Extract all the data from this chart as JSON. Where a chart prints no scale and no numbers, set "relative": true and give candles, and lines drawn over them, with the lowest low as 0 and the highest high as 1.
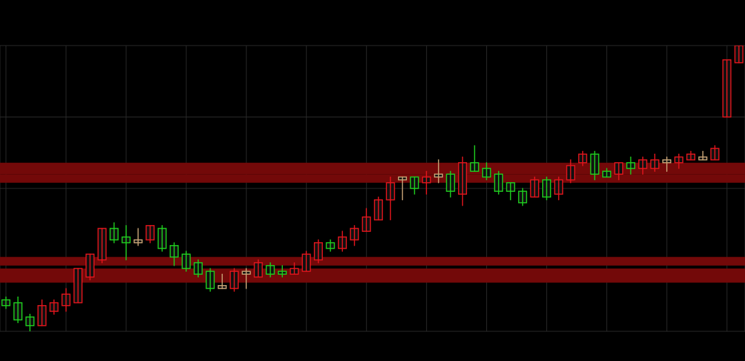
{
  "chart_data": {
    "type": "candlestick",
    "relative": true,
    "grid": true,
    "categories": [
      null,
      null,
      null,
      null,
      null,
      null,
      null,
      null,
      null,
      null,
      null,
      null,
      null,
      null,
      null,
      null,
      null,
      null,
      null,
      null,
      null,
      null,
      null,
      null,
      null,
      null,
      null,
      null,
      null,
      null,
      null,
      null,
      null,
      null,
      null,
      null,
      null,
      null,
      null,
      null,
      null,
      null,
      null,
      null,
      null,
      null,
      null,
      null,
      null,
      null,
      null,
      null,
      null,
      null,
      null,
      null,
      null,
      null,
      null,
      null,
      null,
      null
    ],
    "ohlc": [
      [
        0.11,
        0.12,
        0.08,
        0.09
      ],
      [
        0.1,
        0.12,
        0.03,
        0.04
      ],
      [
        0.05,
        0.06,
        0,
        0.02
      ],
      [
        0.02,
        0.11,
        0.02,
        0.09
      ],
      [
        0.07,
        0.11,
        0.06,
        0.1
      ],
      [
        0.09,
        0.15,
        0.07,
        0.13
      ],
      [
        0.1,
        0.22,
        0.1,
        0.22
      ],
      [
        0.19,
        0.27,
        0.18,
        0.27
      ],
      [
        0.25,
        0.36,
        0.24,
        0.36
      ],
      [
        0.36,
        0.38,
        0.31,
        0.32
      ],
      [
        0.33,
        0.37,
        0.25,
        0.31
      ],
      [
        0.31,
        0.36,
        0.3,
        0.32
      ],
      [
        0.32,
        0.37,
        0.31,
        0.37
      ],
      [
        0.36,
        0.37,
        0.28,
        0.29
      ],
      [
        0.3,
        0.31,
        0.23,
        0.26
      ],
      [
        0.27,
        0.28,
        0.21,
        0.22
      ],
      [
        0.24,
        0.25,
        0.19,
        0.2
      ],
      [
        0.21,
        0.22,
        0.14,
        0.15
      ],
      [
        0.16,
        0.2,
        0.15,
        0.15
      ],
      [
        0.15,
        0.22,
        0.14,
        0.21
      ],
      [
        0.2,
        0.22,
        0.15,
        0.21
      ],
      [
        0.19,
        0.25,
        0.19,
        0.24
      ],
      [
        0.23,
        0.24,
        0.19,
        0.2
      ],
      [
        0.21,
        0.23,
        0.19,
        0.2
      ],
      [
        0.2,
        0.24,
        0.2,
        0.22
      ],
      [
        0.21,
        0.28,
        0.21,
        0.27
      ],
      [
        0.25,
        0.32,
        0.24,
        0.31
      ],
      [
        0.31,
        0.32,
        0.28,
        0.29
      ],
      [
        0.29,
        0.35,
        0.28,
        0.33
      ],
      [
        0.32,
        0.37,
        0.3,
        0.36
      ],
      [
        0.35,
        0.43,
        0.35,
        0.4
      ],
      [
        0.39,
        0.47,
        0.39,
        0.46
      ],
      [
        0.46,
        0.54,
        0.39,
        0.52
      ],
      [
        0.53,
        0.54,
        0.46,
        0.54
      ],
      [
        0.54,
        0.54,
        0.48,
        0.5
      ],
      [
        0.52,
        0.56,
        0.48,
        0.54
      ],
      [
        0.54,
        0.6,
        0.52,
        0.55
      ],
      [
        0.55,
        0.56,
        0.47,
        0.49
      ],
      [
        0.48,
        0.61,
        0.44,
        0.59
      ],
      [
        0.59,
        0.65,
        0.56,
        0.56
      ],
      [
        0.57,
        0.59,
        0.53,
        0.54
      ],
      [
        0.55,
        0.56,
        0.48,
        0.49
      ],
      [
        0.52,
        0.52,
        0.46,
        0.49
      ],
      [
        0.49,
        0.5,
        0.44,
        0.45
      ],
      [
        0.47,
        0.54,
        0.47,
        0.53
      ],
      [
        0.53,
        0.54,
        0.46,
        0.47
      ],
      [
        0.48,
        0.54,
        0.46,
        0.53
      ],
      [
        0.53,
        0.6,
        0.52,
        0.58
      ],
      [
        0.59,
        0.63,
        0.58,
        0.62
      ],
      [
        0.62,
        0.63,
        0.53,
        0.55
      ],
      [
        0.56,
        0.57,
        0.54,
        0.54
      ],
      [
        0.55,
        0.59,
        0.53,
        0.59
      ],
      [
        0.59,
        0.61,
        0.55,
        0.57
      ],
      [
        0.57,
        0.61,
        0.55,
        0.6
      ],
      [
        0.57,
        0.62,
        0.56,
        0.6
      ],
      [
        0.59,
        0.61,
        0.56,
        0.6
      ],
      [
        0.59,
        0.62,
        0.57,
        0.61
      ],
      [
        0.6,
        0.63,
        0.6,
        0.62
      ],
      [
        0.6,
        0.63,
        0.6,
        0.61
      ],
      [
        0.6,
        0.65,
        0.6,
        0.64
      ],
      [
        0.75,
        0.95,
        0.75,
        0.95
      ],
      [
        0.94,
        1,
        0.94,
        1
      ]
    ],
    "colors": [
      "#1fcf1f",
      "#1fcf1f",
      "#1fcf1f",
      "#e3161d",
      "#e3161d",
      "#e3161d",
      "#e3161d",
      "#e3161d",
      "#e3161d",
      "#1fcf1f",
      "#1fcf1f",
      "#c9a577",
      "#e3161d",
      "#1fcf1f",
      "#1fcf1f",
      "#1fcf1f",
      "#1fcf1f",
      "#1fcf1f",
      "#c9a577",
      "#e3161d",
      "#c9a577",
      "#e3161d",
      "#1fcf1f",
      "#1fcf1f",
      "#e3161d",
      "#e3161d",
      "#e3161d",
      "#1fcf1f",
      "#e3161d",
      "#e3161d",
      "#e3161d",
      "#e3161d",
      "#e3161d",
      "#c9a577",
      "#1fcf1f",
      "#e3161d",
      "#c9a577",
      "#1fcf1f",
      "#e3161d",
      "#1fcf1f",
      "#1fcf1f",
      "#1fcf1f",
      "#1fcf1f",
      "#1fcf1f",
      "#e3161d",
      "#1fcf1f",
      "#e3161d",
      "#e3161d",
      "#e3161d",
      "#1fcf1f",
      "#1fcf1f",
      "#e3161d",
      "#1fcf1f",
      "#e3161d",
      "#e3161d",
      "#c9a577",
      "#e3161d",
      "#e3161d",
      "#c9a577",
      "#e3161d",
      "#e3161d",
      "#e3161d"
    ],
    "bands": [
      {
        "axis": "y",
        "from": 0.18,
        "to": 0.22,
        "color": "#730909"
      },
      {
        "axis": "y",
        "from": 0.17,
        "to": 0.21,
        "color": "#730909"
      },
      {
        "axis": "y",
        "from": 0.23,
        "to": 0.26,
        "color": "#730909"
      },
      {
        "axis": "y",
        "from": 0.52,
        "to": 0.55,
        "color": "#730909"
      },
      {
        "axis": "y",
        "from": 0.55,
        "to": 0.59,
        "color": "#730909"
      }
    ]
  }
}
